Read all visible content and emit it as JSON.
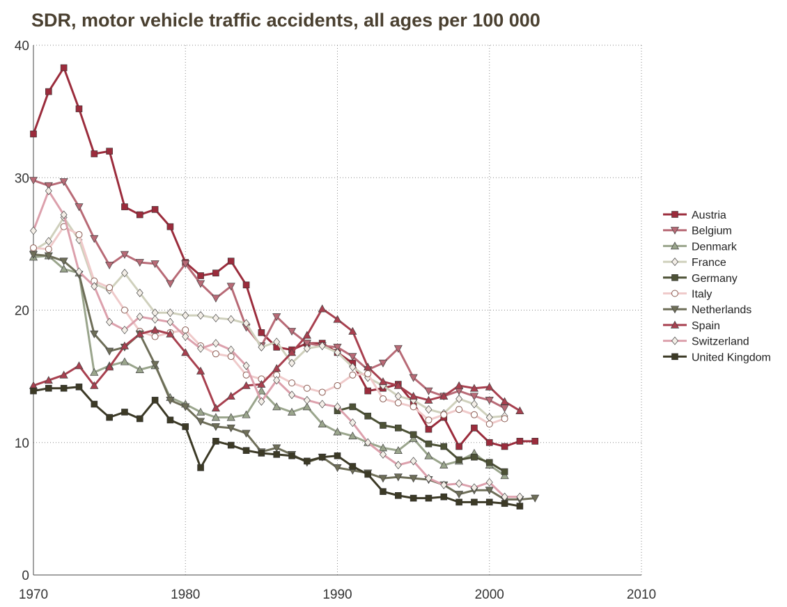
{
  "chart_data": {
    "type": "line",
    "title": "SDR, motor vehicle traffic accidents, all ages per 100 000",
    "x": [
      1970,
      1971,
      1972,
      1973,
      1974,
      1975,
      1976,
      1977,
      1978,
      1979,
      1980,
      1981,
      1982,
      1983,
      1984,
      1985,
      1986,
      1987,
      1988,
      1989,
      1990,
      1991,
      1992,
      1993,
      1994,
      1995,
      1996,
      1997,
      1998,
      1999,
      2000,
      2001,
      2002,
      2003
    ],
    "xlim": [
      1970,
      2010
    ],
    "xticks": [
      1970,
      1980,
      1990,
      2000,
      2010
    ],
    "ylim": [
      0,
      40
    ],
    "yticks": [
      0,
      10,
      20,
      30,
      40
    ],
    "grid": true,
    "legend": "right",
    "series": [
      {
        "name": "Austria",
        "color": "#9b2c3c",
        "marker": "square",
        "values": [
          33.3,
          36.5,
          38.3,
          35.2,
          31.8,
          32.0,
          27.8,
          27.2,
          27.6,
          26.3,
          23.6,
          22.6,
          22.8,
          23.7,
          21.9,
          18.3,
          17.2,
          17.0,
          17.5,
          17.5,
          16.8,
          16.0,
          13.9,
          14.1,
          14.4,
          13.0,
          11.0,
          11.9,
          9.7,
          11.1,
          10.0,
          9.7,
          10.1,
          10.1
        ]
      },
      {
        "name": "Belgium",
        "color": "#b86a76",
        "marker": "tri-down",
        "values": [
          29.8,
          29.4,
          29.7,
          27.8,
          25.4,
          23.4,
          24.2,
          23.6,
          23.5,
          22.0,
          23.5,
          22.0,
          20.9,
          21.8,
          18.7,
          17.3,
          19.5,
          18.4,
          17.5,
          17.3,
          17.2,
          16.5,
          15.5,
          16.0,
          17.1,
          14.9,
          13.9,
          13.5,
          13.9,
          13.5,
          13.2,
          12.6,
          null,
          null
        ]
      },
      {
        "name": "Denmark",
        "color": "#9aa58c",
        "marker": "tri-up",
        "values": [
          24.0,
          24.1,
          23.1,
          22.8,
          15.3,
          15.8,
          16.1,
          15.5,
          15.8,
          13.4,
          12.9,
          12.3,
          11.9,
          11.9,
          12.1,
          13.9,
          12.7,
          12.3,
          12.7,
          11.4,
          10.8,
          10.5,
          10.0,
          9.6,
          9.4,
          10.3,
          9.0,
          8.3,
          8.6,
          9.2,
          8.3,
          7.5,
          null,
          null
        ]
      },
      {
        "name": "France",
        "color": "#cfd0bc",
        "marker": "diamond",
        "values": [
          24.5,
          25.2,
          27.0,
          25.3,
          22.0,
          21.5,
          22.8,
          21.3,
          19.8,
          19.8,
          19.6,
          19.6,
          19.4,
          19.3,
          19.0,
          17.2,
          17.6,
          16.0,
          17.1,
          17.3,
          16.8,
          15.7,
          14.9,
          14.3,
          13.5,
          13.2,
          12.5,
          12.2,
          13.3,
          12.9,
          11.9,
          12.0,
          null,
          null
        ]
      },
      {
        "name": "Germany",
        "color": "#4d5236",
        "marker": "square",
        "values": [
          null,
          null,
          null,
          null,
          null,
          null,
          null,
          null,
          null,
          null,
          null,
          null,
          null,
          null,
          null,
          null,
          null,
          null,
          null,
          null,
          12.4,
          12.7,
          12.0,
          11.3,
          11.1,
          10.6,
          9.9,
          9.7,
          8.7,
          8.9,
          8.5,
          7.8,
          null,
          null
        ]
      },
      {
        "name": "Italy",
        "color": "#efcaca",
        "marker": "circle",
        "values": [
          24.7,
          24.6,
          26.3,
          25.7,
          22.2,
          21.7,
          20.0,
          18.4,
          18.0,
          18.3,
          18.5,
          17.3,
          16.7,
          16.5,
          15.1,
          14.8,
          15.1,
          14.5,
          14.1,
          13.8,
          14.3,
          15.1,
          15.2,
          13.3,
          13.0,
          12.7,
          11.7,
          12.1,
          12.5,
          12.1,
          11.4,
          11.8,
          null,
          null
        ]
      },
      {
        "name": "Netherlands",
        "color": "#6e6e58",
        "marker": "tri-down",
        "values": [
          24.2,
          24.1,
          23.7,
          22.7,
          18.2,
          16.9,
          17.2,
          18.2,
          15.9,
          13.2,
          12.7,
          11.6,
          11.2,
          11.1,
          10.7,
          9.3,
          9.6,
          9.1,
          8.5,
          8.9,
          8.1,
          7.9,
          7.7,
          7.3,
          7.4,
          7.3,
          7.2,
          6.8,
          6.1,
          6.4,
          6.4,
          5.7,
          5.7,
          5.8
        ]
      },
      {
        "name": "Spain",
        "color": "#a8404f",
        "marker": "tri-up",
        "values": [
          14.3,
          14.7,
          15.1,
          15.8,
          14.3,
          15.7,
          17.3,
          18.2,
          18.5,
          18.2,
          16.8,
          15.4,
          12.6,
          13.5,
          14.3,
          14.4,
          15.6,
          16.8,
          18.1,
          20.1,
          19.3,
          18.4,
          15.7,
          14.6,
          14.3,
          13.5,
          13.2,
          13.5,
          14.3,
          14.1,
          14.2,
          13.1,
          12.4,
          null
        ]
      },
      {
        "name": "Switzerland",
        "color": "#dca0ac",
        "marker": "diamond",
        "values": [
          26.0,
          29.0,
          27.2,
          22.9,
          21.8,
          19.1,
          18.5,
          19.5,
          19.3,
          19.1,
          18.0,
          17.1,
          17.5,
          17.0,
          15.8,
          13.1,
          14.7,
          13.6,
          13.2,
          12.9,
          12.7,
          11.5,
          10.0,
          9.1,
          8.3,
          8.6,
          7.3,
          6.8,
          6.9,
          6.6,
          7.0,
          5.9,
          5.9,
          null
        ]
      },
      {
        "name": "United Kingdom",
        "color": "#3c3a26",
        "marker": "square",
        "values": [
          13.9,
          14.1,
          14.1,
          14.2,
          12.9,
          11.9,
          12.3,
          11.8,
          13.2,
          11.7,
          11.2,
          8.1,
          10.1,
          9.8,
          9.4,
          9.2,
          9.1,
          9.0,
          8.6,
          8.9,
          9.0,
          8.2,
          7.6,
          6.3,
          6.0,
          5.8,
          5.8,
          5.9,
          5.5,
          5.5,
          5.5,
          5.4,
          5.2,
          null
        ]
      }
    ]
  }
}
